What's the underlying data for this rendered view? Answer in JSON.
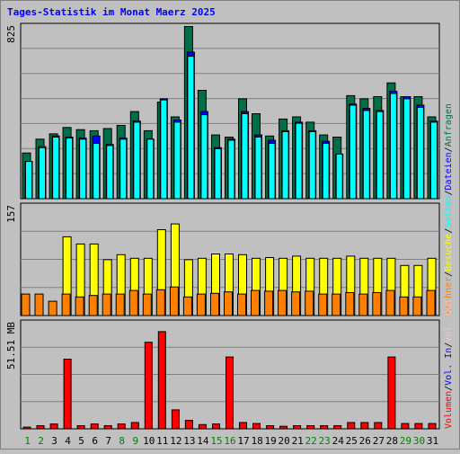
{
  "chart_data": {
    "type": "bar",
    "title": "Tages-Statistik im Monat Maerz 2025",
    "categories": [
      "1",
      "2",
      "3",
      "4",
      "5",
      "6",
      "7",
      "8",
      "9",
      "10",
      "11",
      "12",
      "13",
      "14",
      "15",
      "16",
      "17",
      "18",
      "19",
      "20",
      "21",
      "22",
      "23",
      "24",
      "25",
      "26",
      "27",
      "28",
      "29",
      "30",
      "31"
    ],
    "weekend_days": [
      "1",
      "2",
      "8",
      "9",
      "15",
      "16",
      "22",
      "23",
      "29",
      "30"
    ],
    "panels": [
      {
        "id": "requests",
        "max_label": "825",
        "ylim": [
          0,
          825
        ],
        "series": [
          {
            "name": "Anfragen",
            "color": "#006f48",
            "values": [
              215,
              280,
              305,
              335,
              325,
              320,
              330,
              345,
              410,
              320,
              455,
              385,
              810,
              510,
              300,
              290,
              470,
              400,
              295,
              375,
              385,
              360,
              300,
              290,
              485,
              470,
              480,
              545,
              480,
              480,
              385
            ]
          },
          {
            "name": "Dateien",
            "color": "#0000ff",
            "values": [
              175,
              245,
              295,
              290,
              285,
              295,
              255,
              285,
              365,
              280,
              470,
              370,
              690,
              410,
              240,
              280,
              410,
              300,
              275,
              320,
              360,
              320,
              270,
              210,
              445,
              425,
              415,
              505,
              480,
              440,
              365
            ]
          },
          {
            "name": "Seiten",
            "color": "#00ffff",
            "values": [
              175,
              240,
              290,
              285,
              280,
              260,
              250,
              280,
              360,
              280,
              465,
              360,
              670,
              395,
              235,
              275,
              400,
              290,
              260,
              315,
              355,
              315,
              260,
              210,
              440,
              415,
              410,
              495,
              470,
              430,
              360
            ]
          }
        ]
      },
      {
        "id": "visits",
        "max_label": "157",
        "ylim": [
          0,
          157
        ],
        "series": [
          {
            "name": "Besuche",
            "color": "#ffff00",
            "values": [
              0,
              0,
              0,
              110,
              100,
              100,
              78,
              85,
              80,
              80,
              120,
              128,
              78,
              80,
              86,
              86,
              85,
              80,
              81,
              80,
              83,
              80,
              80,
              80,
              83,
              80,
              80,
              80,
              70,
              70,
              80
            ]
          },
          {
            "name": "Rechner",
            "color": "#ff8000",
            "values": [
              30,
              30,
              20,
              30,
              26,
              28,
              30,
              30,
              35,
              30,
              36,
              40,
              26,
              30,
              31,
              33,
              30,
              35,
              34,
              35,
              33,
              34,
              30,
              30,
              32,
              30,
              32,
              35,
              26,
              26,
              35
            ]
          }
        ]
      },
      {
        "id": "volume",
        "max_label": "51.51 MB",
        "ylim": [
          0,
          51.51
        ],
        "series": [
          {
            "name": "Volumen",
            "color": "#ff0000",
            "values": [
              0.8,
              1.5,
              2.3,
              33,
              1.5,
              2.3,
              1.5,
              2.3,
              3,
              41,
              46,
              9,
              4,
              2,
              2.3,
              34,
              3,
              2.5,
              1.5,
              1.2,
              1.5,
              1.5,
              1.5,
              1.5,
              3,
              3,
              3,
              34,
              2.5,
              2.5,
              2.5
            ]
          }
        ]
      }
    ],
    "legend_right": {
      "upper": [
        {
          "label": "Anfragen",
          "color": "#006f48"
        },
        {
          "label": "Dateien",
          "color": "#0000ff"
        },
        {
          "label": "Seiten",
          "color": "#00ffff"
        },
        {
          "label": "Besuche",
          "color": "#ffff00"
        },
        {
          "label": "Rechner",
          "color": "#ff8000"
        }
      ],
      "lower": [
        {
          "label": "Vol. Out",
          "color": "#ffc0c0"
        },
        {
          "label": "Vol. In",
          "color": "#0000ff"
        },
        {
          "label": "Volumen",
          "color": "#ff0000"
        }
      ],
      "separator": "/"
    },
    "colors": {
      "title": "#0000ff",
      "background": "#c0c0c0",
      "axis_labels": "#000000",
      "weekday_label": "#000000",
      "weekend_label": "#008000",
      "grid": "#808080"
    }
  }
}
